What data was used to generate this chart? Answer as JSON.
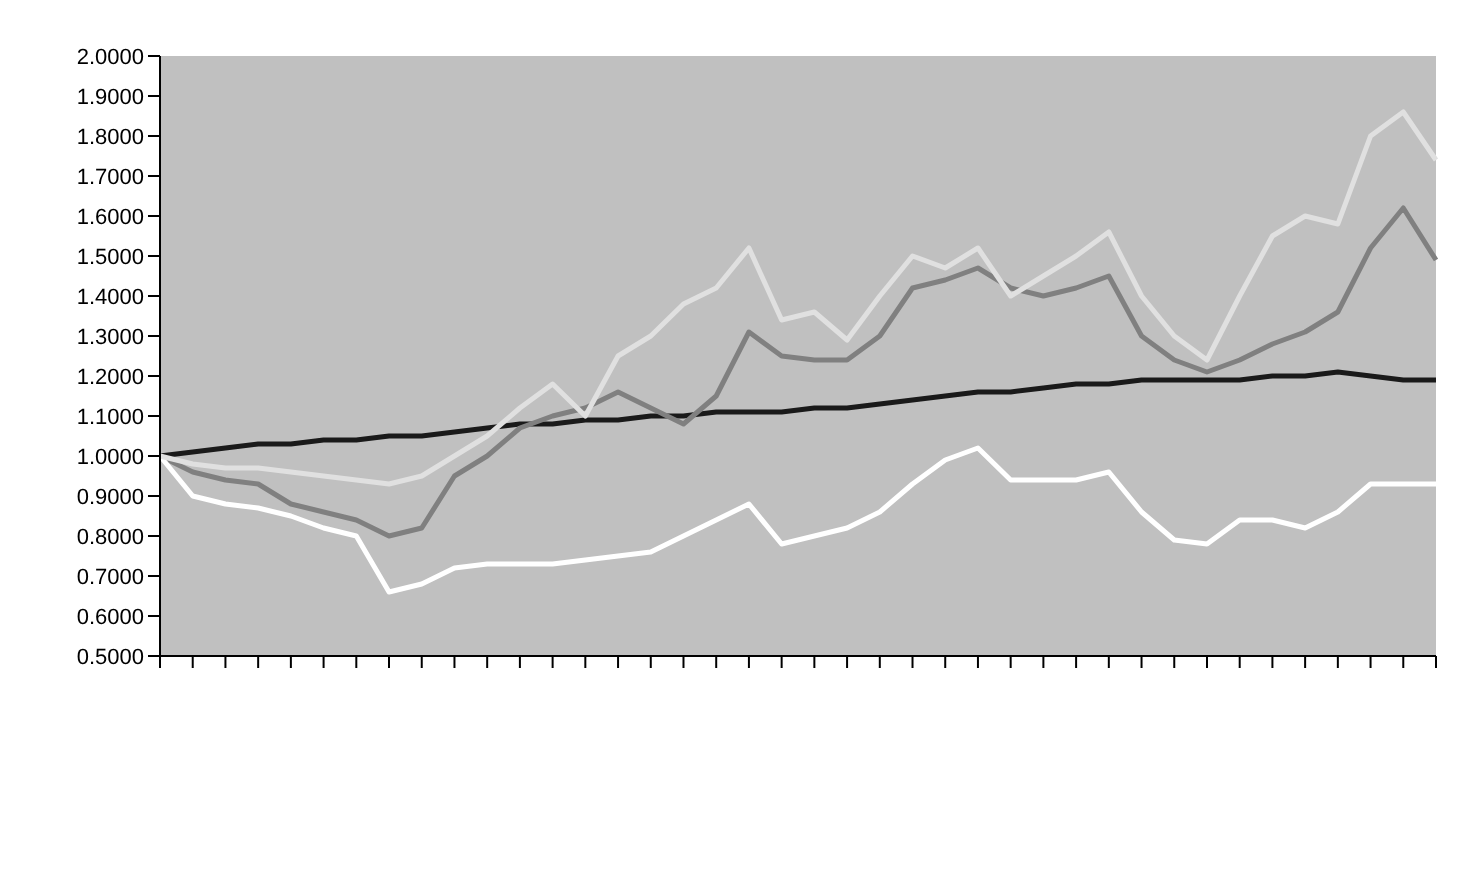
{
  "chart_data": {
    "type": "line",
    "categories": [
      null,
      null,
      null,
      null,
      null,
      null,
      null,
      null,
      null,
      null,
      null,
      null,
      null,
      null,
      null,
      null,
      null,
      null,
      null,
      null,
      null,
      null,
      null,
      null,
      null,
      null,
      null,
      null,
      null,
      null,
      null,
      null,
      null,
      null,
      null,
      null,
      null,
      null,
      null,
      null
    ],
    "series": [
      {
        "color": "#1a1a1a",
        "values": [
          1.0,
          1.01,
          1.02,
          1.03,
          1.03,
          1.04,
          1.04,
          1.05,
          1.05,
          1.06,
          1.07,
          1.08,
          1.08,
          1.09,
          1.09,
          1.1,
          1.1,
          1.11,
          1.11,
          1.11,
          1.12,
          1.12,
          1.13,
          1.14,
          1.15,
          1.16,
          1.16,
          1.17,
          1.18,
          1.18,
          1.19,
          1.19,
          1.19,
          1.19,
          1.2,
          1.2,
          1.21,
          1.2,
          1.19,
          1.19
        ]
      },
      {
        "color": "#808080",
        "values": [
          1.0,
          0.96,
          0.94,
          0.93,
          0.88,
          0.86,
          0.84,
          0.8,
          0.82,
          0.95,
          1.0,
          1.07,
          1.1,
          1.12,
          1.16,
          1.12,
          1.08,
          1.15,
          1.31,
          1.25,
          1.24,
          1.24,
          1.3,
          1.42,
          1.44,
          1.47,
          1.42,
          1.4,
          1.42,
          1.45,
          1.3,
          1.24,
          1.21,
          1.24,
          1.28,
          1.31,
          1.36,
          1.52,
          1.62,
          1.49
        ]
      },
      {
        "color": "#ffffff",
        "values": [
          1.0,
          0.9,
          0.88,
          0.87,
          0.85,
          0.82,
          0.8,
          0.66,
          0.68,
          0.72,
          0.73,
          0.73,
          0.73,
          0.74,
          0.75,
          0.76,
          0.8,
          0.84,
          0.88,
          0.78,
          0.8,
          0.82,
          0.86,
          0.93,
          0.99,
          1.02,
          0.94,
          0.94,
          0.94,
          0.96,
          0.86,
          0.79,
          0.78,
          0.84,
          0.84,
          0.82,
          0.86,
          0.93,
          0.93,
          0.93
        ]
      },
      {
        "color": "#e0e0e0",
        "values": [
          1.0,
          0.98,
          0.97,
          0.97,
          0.96,
          0.95,
          0.94,
          0.93,
          0.95,
          1.0,
          1.05,
          1.12,
          1.18,
          1.1,
          1.25,
          1.3,
          1.38,
          1.42,
          1.52,
          1.34,
          1.36,
          1.29,
          1.4,
          1.5,
          1.47,
          1.52,
          1.4,
          1.45,
          1.5,
          1.56,
          1.4,
          1.3,
          1.24,
          1.4,
          1.55,
          1.6,
          1.58,
          1.8,
          1.86,
          1.74
        ]
      }
    ],
    "ylim": [
      0.5,
      2.0
    ],
    "yticks": [
      {
        "value": 2.0,
        "label": "2.0000"
      },
      {
        "value": 1.9,
        "label": "1.9000"
      },
      {
        "value": 1.8,
        "label": "1.8000"
      },
      {
        "value": 1.7,
        "label": "1.7000"
      },
      {
        "value": 1.6,
        "label": "1.6000"
      },
      {
        "value": 1.5,
        "label": "1.5000"
      },
      {
        "value": 1.4,
        "label": "1.4000"
      },
      {
        "value": 1.3,
        "label": "1.3000"
      },
      {
        "value": 1.2,
        "label": "1.2000"
      },
      {
        "value": 1.1,
        "label": "1.1000"
      },
      {
        "value": 1.0,
        "label": "1.0000"
      },
      {
        "value": 0.9,
        "label": "0.9000"
      },
      {
        "value": 0.8,
        "label": "0.8000"
      },
      {
        "value": 0.7,
        "label": "0.7000"
      },
      {
        "value": 0.6,
        "label": "0.6000"
      },
      {
        "value": 0.5,
        "label": "0.5000"
      }
    ],
    "marker": "none",
    "line_style": "solid"
  }
}
